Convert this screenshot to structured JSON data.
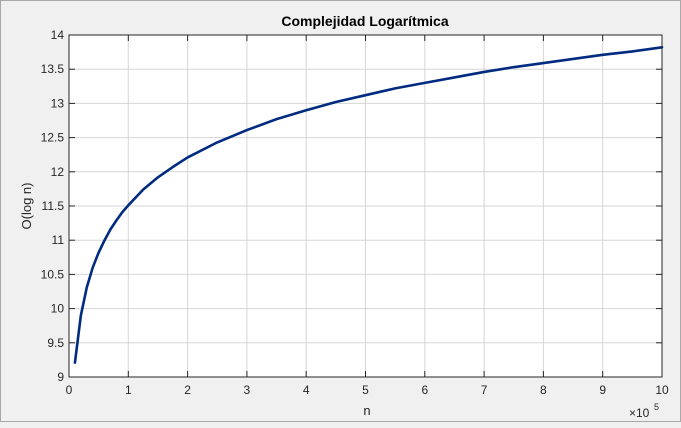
{
  "chart_data": {
    "type": "line",
    "title": "Complejidad Logarítmica",
    "xlabel": "n",
    "ylabel": "O(log n)",
    "x_exponent_base": "×10",
    "x_exponent_power": "5",
    "xlim": [
      0,
      10
    ],
    "ylim": [
      9,
      14
    ],
    "xticks": [
      "0",
      "1",
      "2",
      "3",
      "4",
      "5",
      "6",
      "7",
      "8",
      "9",
      "10"
    ],
    "yticks": [
      "9",
      "9.5",
      "10",
      "10.5",
      "11",
      "11.5",
      "12",
      "12.5",
      "13",
      "13.5",
      "14"
    ],
    "grid": true,
    "line_color": "#002b80",
    "series": [
      {
        "x": [
          0.1,
          0.2,
          0.3,
          0.4,
          0.5,
          0.6,
          0.7,
          0.8,
          0.9,
          1.0,
          1.25,
          1.5,
          1.75,
          2.0,
          2.5,
          3.0,
          3.5,
          4.0,
          4.5,
          5.0,
          5.5,
          6.0,
          6.5,
          7.0,
          7.5,
          8.0,
          8.5,
          9.0,
          9.5,
          10.0
        ],
        "y": [
          9.21,
          9.9,
          10.31,
          10.6,
          10.82,
          11.0,
          11.16,
          11.29,
          11.41,
          11.51,
          11.74,
          11.92,
          12.07,
          12.21,
          12.43,
          12.61,
          12.77,
          12.9,
          13.02,
          13.12,
          13.22,
          13.3,
          13.38,
          13.46,
          13.53,
          13.59,
          13.65,
          13.71,
          13.76,
          13.82
        ]
      }
    ]
  }
}
